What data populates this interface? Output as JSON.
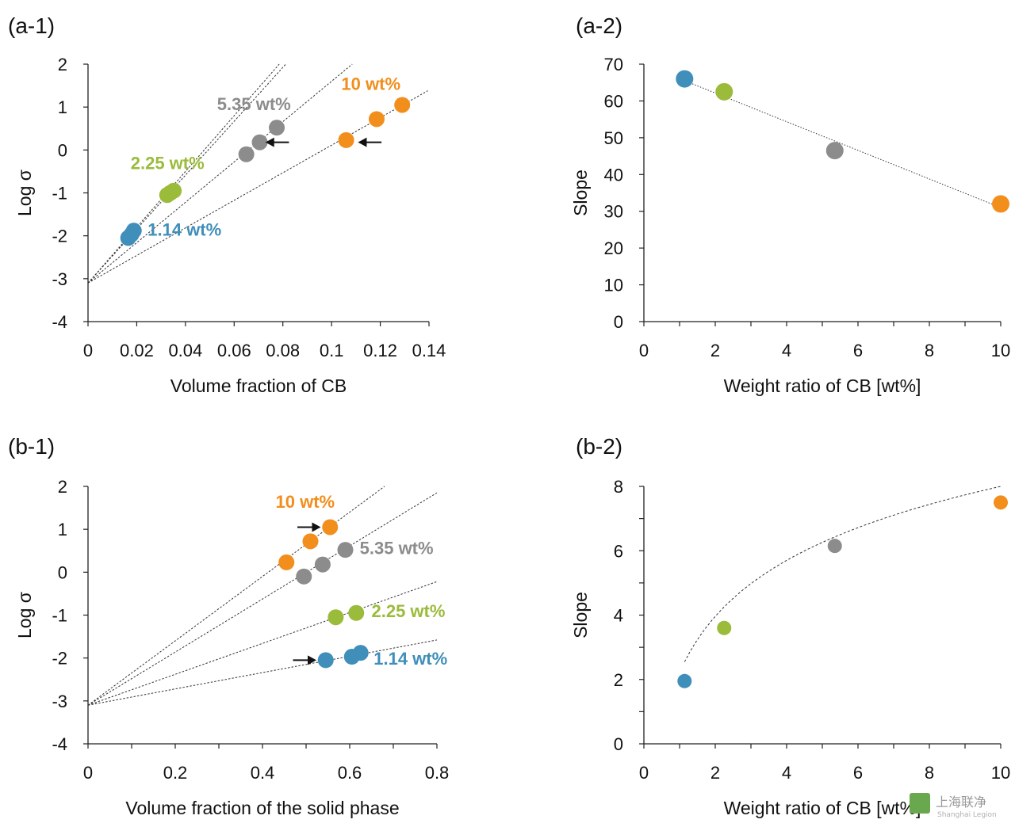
{
  "colors": {
    "c1_14": "#3f8fba",
    "c2_25": "#9bbb3b",
    "c5_35": "#8c8c8c",
    "c10": "#f28e1c",
    "axis": "#222222"
  },
  "watermark": {
    "logo_text": "上海联净",
    "sub_text": "Shanghai Legion"
  },
  "chart_data": [
    {
      "id": "a1",
      "type": "scatter",
      "panel_label": "(a-1)",
      "xlabel": "Volume fraction of CB",
      "ylabel": "Log σ",
      "xlim": [
        0,
        0.14
      ],
      "ylim": [
        -4,
        2
      ],
      "xticks": [
        0,
        0.02,
        0.04,
        0.06,
        0.08,
        0.1,
        0.12,
        0.14
      ],
      "xtick_labels": [
        "0",
        "0.02",
        "0.04",
        "0.06",
        "0.08",
        "0.1",
        "0.12",
        "0.14"
      ],
      "yticks": [
        -4,
        -3,
        -2,
        -1,
        0,
        1,
        2
      ],
      "ytick_labels": [
        "-4",
        "-3",
        "-2",
        "-1",
        "0",
        "1",
        "2"
      ],
      "series": [
        {
          "name": "1.14 wt%",
          "color_key": "c1_14",
          "x": [
            0.0165,
            0.0178,
            0.0188
          ],
          "y": [
            -2.05,
            -1.97,
            -1.88
          ],
          "fit": {
            "x0": 0,
            "y0": -3.1,
            "x1": 0.0785,
            "y1": 2.0
          }
        },
        {
          "name": "2.25 wt%",
          "color_key": "c2_25",
          "x": [
            0.0325,
            0.0338,
            0.0352
          ],
          "y": [
            -1.05,
            -1.0,
            -0.95
          ],
          "fit": {
            "x0": 0,
            "y0": -3.1,
            "x1": 0.0812,
            "y1": 2.0
          }
        },
        {
          "name": "5.35 wt%",
          "color_key": "c5_35",
          "x": [
            0.065,
            0.0705,
            0.0775
          ],
          "y": [
            -0.1,
            0.18,
            0.52
          ],
          "fit": {
            "x0": 0,
            "y0": -3.1,
            "x1": 0.1085,
            "y1": 2.0
          }
        },
        {
          "name": "10 wt%",
          "color_key": "c10",
          "x": [
            0.106,
            0.1185,
            0.129
          ],
          "y": [
            0.23,
            0.72,
            1.05
          ],
          "fit": {
            "x0": 0,
            "y0": -3.1,
            "x1": 0.1395,
            "y1": 1.38
          }
        }
      ],
      "annotations": [
        {
          "text": "5.35 wt%",
          "color_key": "c5_35",
          "x": 0.053,
          "y": 0.93
        },
        {
          "text": "10 wt%",
          "color_key": "c10",
          "x": 0.104,
          "y": 1.4
        },
        {
          "text": "2.25 wt%",
          "color_key": "c2_25",
          "x": 0.0175,
          "y": -0.45
        },
        {
          "text": "1.14 wt%",
          "color_key": "c1_14",
          "x": 0.0245,
          "y": -2.0
        }
      ],
      "arrows": [
        {
          "x_from": 0.0825,
          "x_to": 0.0735,
          "y": 0.18
        },
        {
          "x_from": 0.1205,
          "x_to": 0.1115,
          "y": 0.18
        }
      ]
    },
    {
      "id": "a2",
      "type": "scatter",
      "panel_label": "(a-2)",
      "xlabel": "Weight ratio of CB [wt%]",
      "ylabel": "Slope",
      "xlim": [
        0,
        10
      ],
      "ylim": [
        0,
        70
      ],
      "xticks": [
        0,
        2,
        4,
        6,
        8,
        10
      ],
      "xtick_labels": [
        "0",
        "2",
        "4",
        "6",
        "8",
        "10"
      ],
      "yticks": [
        0,
        10,
        20,
        30,
        40,
        50,
        60,
        70
      ],
      "ytick_labels": [
        "0",
        "10",
        "20",
        "30",
        "40",
        "50",
        "60",
        "70"
      ],
      "minor_xticks": [
        1,
        3,
        5,
        7,
        9
      ],
      "points": [
        {
          "x": 1.14,
          "y": 66,
          "color_key": "c1_14"
        },
        {
          "x": 2.25,
          "y": 62.5,
          "color_key": "c2_25"
        },
        {
          "x": 5.35,
          "y": 46.5,
          "color_key": "c5_35"
        },
        {
          "x": 10,
          "y": 32,
          "color_key": "c10"
        }
      ],
      "trend": {
        "kind": "linear",
        "x0": 1.14,
        "y0": 65.5,
        "x1": 10,
        "y1": 31
      }
    },
    {
      "id": "b1",
      "type": "scatter",
      "panel_label": "(b-1)",
      "xlabel": "Volume fraction of the solid phase",
      "ylabel": "Log σ",
      "xlim": [
        0,
        0.8
      ],
      "ylim": [
        -4,
        2
      ],
      "xticks": [
        0,
        0.2,
        0.4,
        0.6,
        0.8
      ],
      "xtick_labels": [
        "0",
        "0.2",
        "0.4",
        "0.6",
        "0.8"
      ],
      "minor_xticks": [
        0.1,
        0.3,
        0.5,
        0.7
      ],
      "yticks": [
        -4,
        -3,
        -2,
        -1,
        0,
        1,
        2
      ],
      "ytick_labels": [
        "-4",
        "-3",
        "-2",
        "-1",
        "0",
        "1",
        "2"
      ],
      "series": [
        {
          "name": "10 wt%",
          "color_key": "c10",
          "x": [
            0.455,
            0.51,
            0.555
          ],
          "y": [
            0.23,
            0.72,
            1.05
          ],
          "fit": {
            "x0": 0,
            "y0": -3.1,
            "x1": 0.68,
            "y1": 2.0
          }
        },
        {
          "name": "5.35 wt%",
          "color_key": "c5_35",
          "x": [
            0.495,
            0.538,
            0.59
          ],
          "y": [
            -0.1,
            0.18,
            0.52
          ],
          "fit": {
            "x0": 0,
            "y0": -3.1,
            "x1": 0.8,
            "y1": 1.85
          }
        },
        {
          "name": "2.25 wt%",
          "color_key": "c2_25",
          "x": [
            0.568,
            0.615
          ],
          "y": [
            -1.05,
            -0.95
          ],
          "fit": {
            "x0": 0,
            "y0": -3.1,
            "x1": 0.8,
            "y1": -0.22
          }
        },
        {
          "name": "1.14 wt%",
          "color_key": "c1_14",
          "x": [
            0.545,
            0.605,
            0.625
          ],
          "y": [
            -2.05,
            -1.97,
            -1.88
          ],
          "fit": {
            "x0": 0,
            "y0": -3.1,
            "x1": 0.8,
            "y1": -1.58
          }
        }
      ],
      "annotations": [
        {
          "text": "10 wt%",
          "color_key": "c10",
          "x": 0.43,
          "y": 1.5
        },
        {
          "text": "5.35 wt%",
          "color_key": "c5_35",
          "x": 0.623,
          "y": 0.42
        },
        {
          "text": "2.25 wt%",
          "color_key": "c2_25",
          "x": 0.65,
          "y": -1.05
        },
        {
          "text": "1.14 wt%",
          "color_key": "c1_14",
          "x": 0.655,
          "y": -2.15
        }
      ],
      "arrows": [
        {
          "x_from": 0.48,
          "x_to": 0.53,
          "y": 1.05
        },
        {
          "x_from": 0.47,
          "x_to": 0.52,
          "y": -2.05
        }
      ]
    },
    {
      "id": "b2",
      "type": "scatter",
      "panel_label": "(b-2)",
      "xlabel": "Weight ratio of CB [wt%]",
      "ylabel": "Slope",
      "xlim": [
        0,
        10
      ],
      "ylim": [
        0,
        8
      ],
      "xticks": [
        0,
        2,
        4,
        6,
        8,
        10
      ],
      "xtick_labels": [
        "0",
        "2",
        "4",
        "6",
        "8",
        "10"
      ],
      "minor_xticks": [
        1,
        3,
        5,
        7,
        9
      ],
      "yticks": [
        0,
        2,
        4,
        6,
        8
      ],
      "ytick_labels": [
        "0",
        "2",
        "4",
        "6",
        "8"
      ],
      "minor_yticks": [
        1,
        3,
        5,
        7
      ],
      "points": [
        {
          "x": 1.14,
          "y": 1.95,
          "color_key": "c1_14"
        },
        {
          "x": 2.25,
          "y": 3.6,
          "color_key": "c2_25"
        },
        {
          "x": 5.35,
          "y": 6.15,
          "color_key": "c5_35"
        },
        {
          "x": 10,
          "y": 7.5,
          "color_key": "c10"
        }
      ],
      "trend": {
        "kind": "log",
        "a": 2.51,
        "b": 2.22,
        "x_start": 1.14,
        "x_end": 10
      }
    }
  ]
}
